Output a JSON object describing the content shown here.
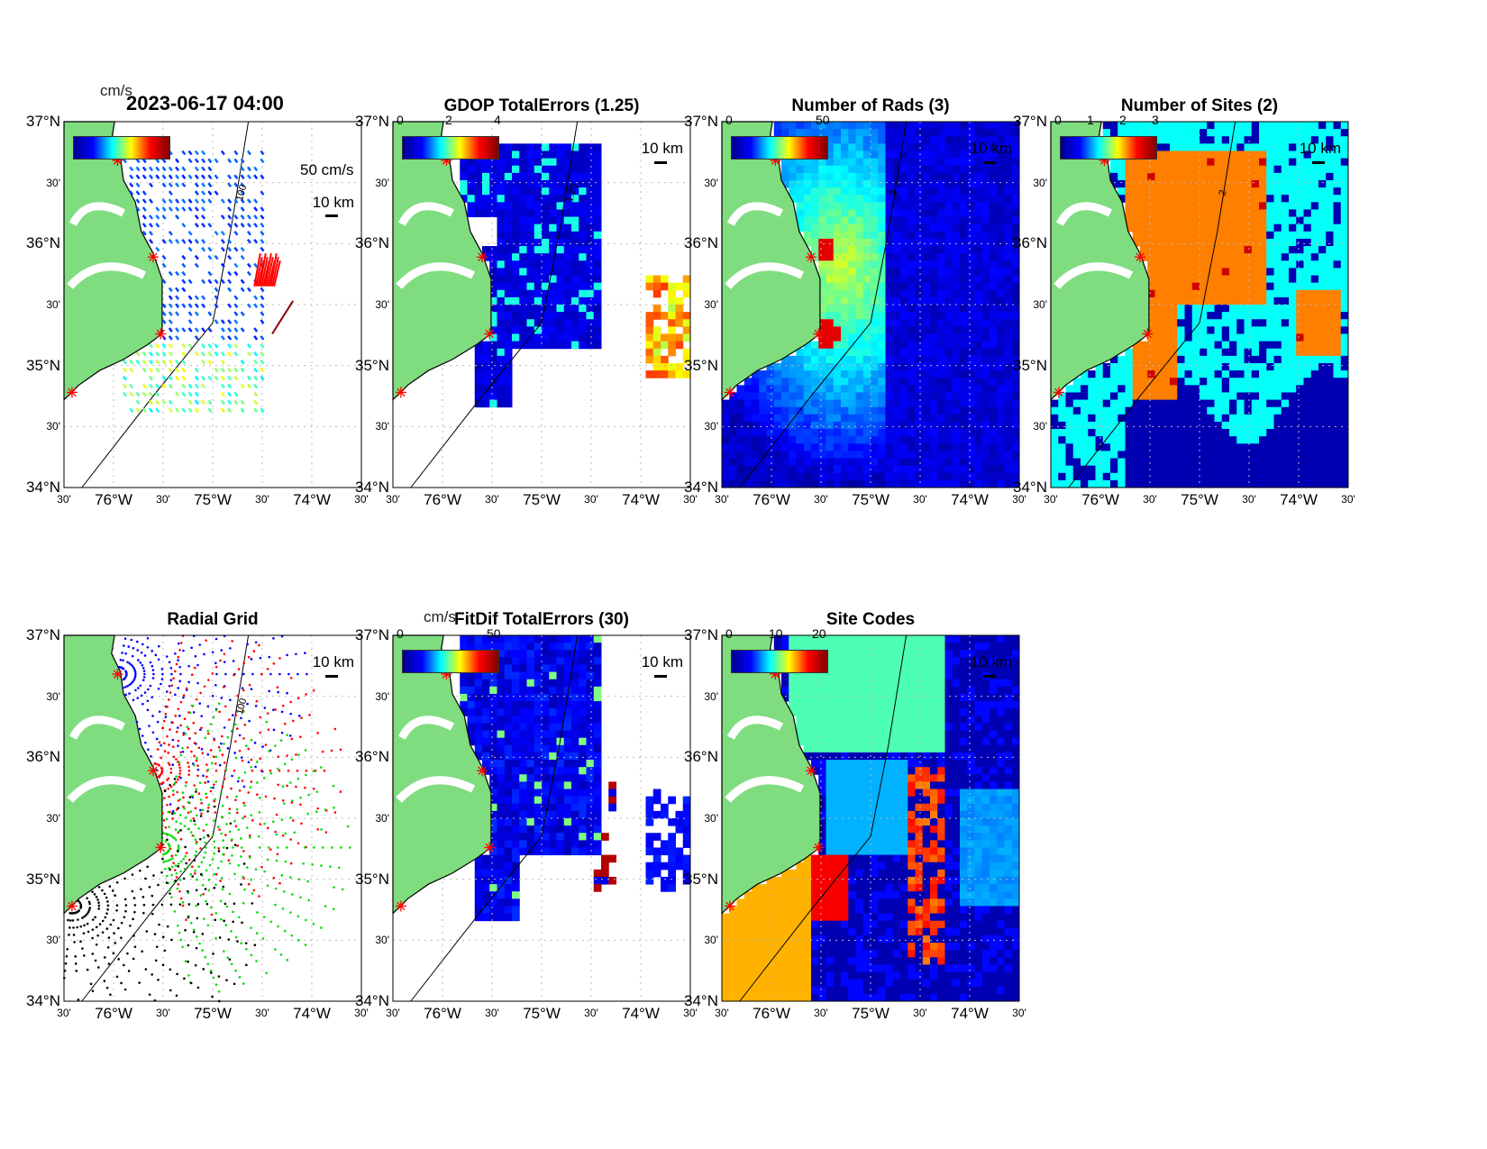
{
  "figure_title": "2023-06-17 04:00",
  "lat_ticks": [
    "37°N",
    "30'",
    "36°N",
    "30'",
    "35°N",
    "30'",
    "34°N"
  ],
  "lon_ticks": [
    "30'",
    "76°W",
    "30'",
    "75°W",
    "30'",
    "74°W",
    "30'"
  ],
  "scale_label": "10 km",
  "panels": [
    {
      "id": "currents",
      "title": "",
      "colorbar_units": "cm/s",
      "colorbar_ticks": [],
      "extra_label": "50 cm/s",
      "contour_label": "100"
    },
    {
      "id": "gdop",
      "title": "GDOP TotalErrors (1.25)",
      "colorbar_ticks": [
        "0",
        "2",
        "4"
      ],
      "contour_label": "1.25"
    },
    {
      "id": "nrads",
      "title": "Number of Rads (3)",
      "colorbar_ticks": [
        "0",
        "50"
      ],
      "contour_label": "3"
    },
    {
      "id": "nsites",
      "title": "Number of Sites (2)",
      "colorbar_ticks": [
        "0",
        "1",
        "2",
        "3"
      ],
      "contour_label": "2"
    },
    {
      "id": "radgrid",
      "title": "Radial Grid",
      "colorbar_ticks": [],
      "contour_label": "100"
    },
    {
      "id": "fitdif",
      "title": "FitDif TotalErrors (30)",
      "colorbar_units": "cm/s",
      "colorbar_ticks": [
        "0",
        "50"
      ]
    },
    {
      "id": "sitecodes",
      "title": "Site Codes",
      "colorbar_ticks": [
        "0",
        "10",
        "20"
      ]
    }
  ],
  "colors": {
    "land": "#7fdc7f",
    "site_marker": "#ff0000",
    "grid": "#bbbbbb"
  }
}
